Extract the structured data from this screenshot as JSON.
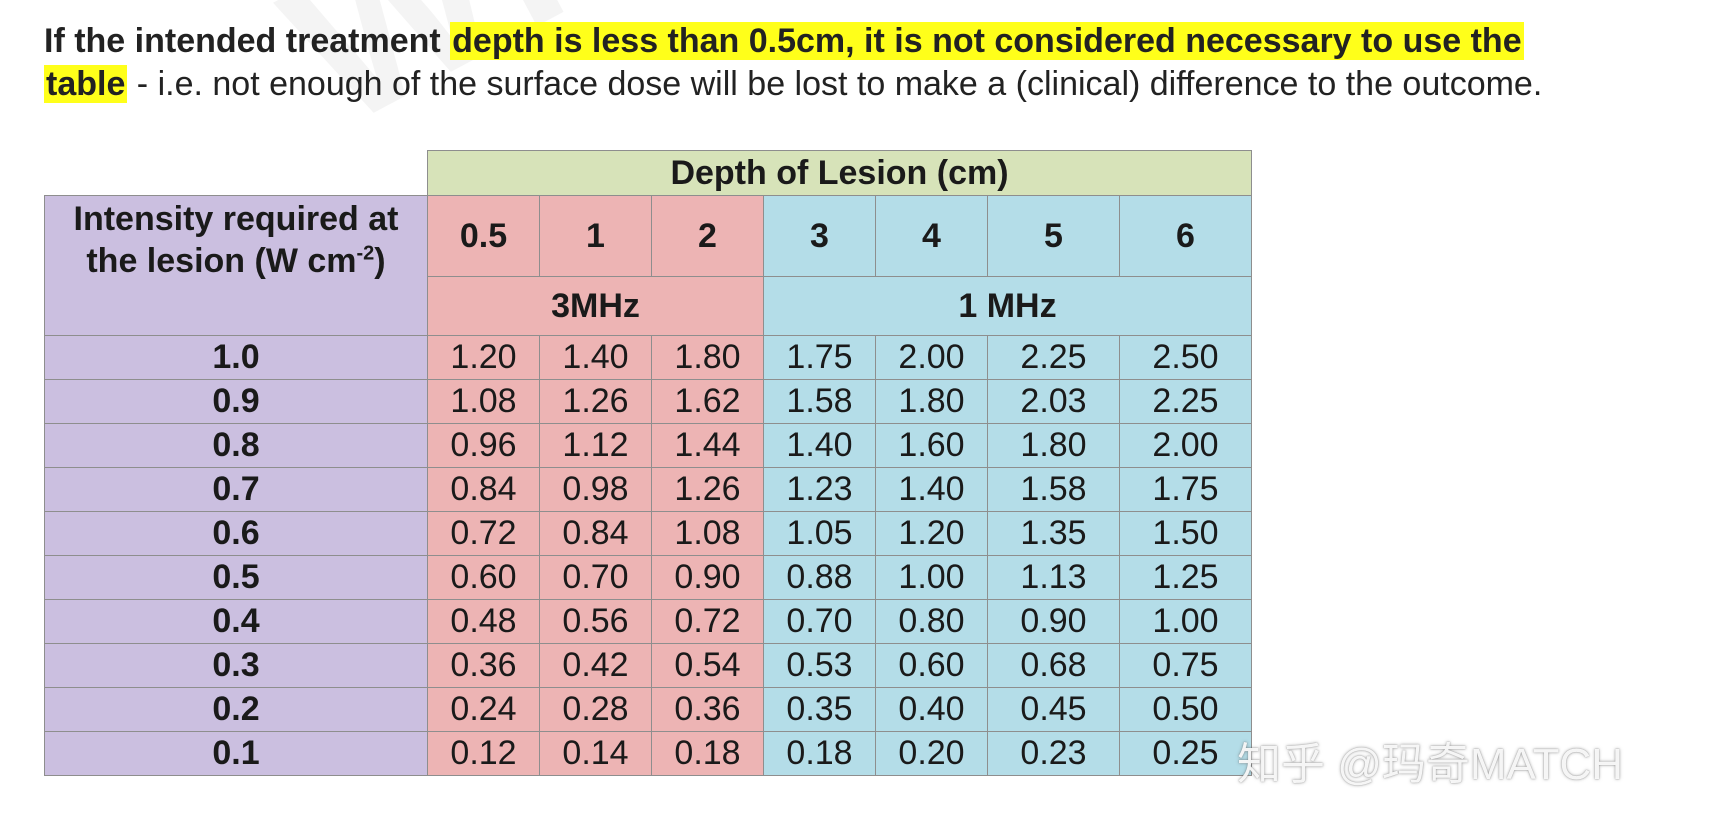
{
  "intro": {
    "bold_lead": "If the intended treatment ",
    "highlight_1": "depth is less than 0.5cm, it is not considered necessary to use the",
    "highlight_2": "table",
    "rest": " - i.e. not enough of the surface dose will be lost to make a (clinical) difference to the outcome."
  },
  "table": {
    "top_header": "Depth of Lesion (cm)",
    "row_label_line1": "Intensity required at",
    "row_label_line2": "the lesion (W cm",
    "row_label_sup": "-2",
    "row_label_end": ")",
    "depths": [
      "0.5",
      "1",
      "2",
      "3",
      "4",
      "5",
      "6"
    ],
    "freq_3": "3MHz",
    "freq_1": "1 MHz",
    "rows": [
      {
        "intensity": "1.0",
        "values": [
          "1.20",
          "1.40",
          "1.80",
          "1.75",
          "2.00",
          "2.25",
          "2.50"
        ]
      },
      {
        "intensity": "0.9",
        "values": [
          "1.08",
          "1.26",
          "1.62",
          "1.58",
          "1.80",
          "2.03",
          "2.25"
        ]
      },
      {
        "intensity": "0.8",
        "values": [
          "0.96",
          "1.12",
          "1.44",
          "1.40",
          "1.60",
          "1.80",
          "2.00"
        ]
      },
      {
        "intensity": "0.7",
        "values": [
          "0.84",
          "0.98",
          "1.26",
          "1.23",
          "1.40",
          "1.58",
          "1.75"
        ]
      },
      {
        "intensity": "0.6",
        "values": [
          "0.72",
          "0.84",
          "1.08",
          "1.05",
          "1.20",
          "1.35",
          "1.50"
        ]
      },
      {
        "intensity": "0.5",
        "values": [
          "0.60",
          "0.70",
          "0.90",
          "0.88",
          "1.00",
          "1.13",
          "1.25"
        ]
      },
      {
        "intensity": "0.4",
        "values": [
          "0.48",
          "0.56",
          "0.72",
          "0.70",
          "0.80",
          "0.90",
          "1.00"
        ]
      },
      {
        "intensity": "0.3",
        "values": [
          "0.36",
          "0.42",
          "0.54",
          "0.53",
          "0.60",
          "0.68",
          "0.75"
        ]
      },
      {
        "intensity": "0.2",
        "values": [
          "0.24",
          "0.28",
          "0.36",
          "0.35",
          "0.40",
          "0.45",
          "0.50"
        ]
      },
      {
        "intensity": "0.1",
        "values": [
          "0.12",
          "0.14",
          "0.18",
          "0.18",
          "0.20",
          "0.23",
          "0.25"
        ]
      }
    ]
  },
  "watermark": "知乎 @玛奇MATCH",
  "colors": {
    "highlight": "#ffff1a",
    "header_green": "#d7e3b9",
    "label_purple": "#cbbfe0",
    "pink_3mhz": "#edb4b4",
    "blue_1mhz": "#b4dde8"
  }
}
